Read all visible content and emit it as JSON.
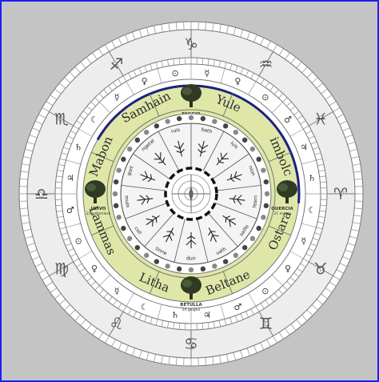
{
  "wheel": {
    "sabbats": [
      {
        "key": "samhain",
        "label": "Samhain"
      },
      {
        "key": "yule",
        "label": "Yule"
      },
      {
        "key": "imbolc",
        "label": "imbolc"
      },
      {
        "key": "ostara",
        "label": "Ostara"
      },
      {
        "key": "beltane",
        "label": "Beltane"
      },
      {
        "key": "litha",
        "label": "Litha"
      },
      {
        "key": "lammas",
        "label": "Lammas"
      },
      {
        "key": "mabon",
        "label": "Mabon"
      }
    ],
    "trees": [
      {
        "key": "fagus",
        "name": "FAGGIO",
        "date": "22 dicembre"
      },
      {
        "key": "quercia",
        "name": "QUERCIA",
        "date": "21 marzo"
      },
      {
        "key": "betula",
        "name": "BETULLA",
        "date": "24 giugno"
      },
      {
        "key": "ulivo",
        "name": "ULIVO",
        "date": "23 settembre"
      }
    ],
    "month_trees": [
      "beth",
      "luis",
      "nion",
      "fearn",
      "saille",
      "uath",
      "duir",
      "tinne",
      "coll",
      "muin",
      "gort",
      "ngetal",
      "ruis"
    ],
    "zodiac_signs": [
      "♑",
      "♒",
      "♓",
      "♈",
      "♉",
      "♊",
      "♋",
      "♌",
      "♍",
      "♎",
      "♏",
      "♐"
    ],
    "planet_symbols": [
      "☿",
      "♀",
      "⊙",
      "♂",
      "♃",
      "♄",
      "☾",
      "☿",
      "♀",
      "⊙",
      "♂",
      "♃",
      "♄",
      "☾",
      "☿",
      "♀",
      "⊙",
      "♂",
      "♃",
      "♄",
      "☾",
      "☿",
      "♀",
      "⊙"
    ],
    "colors": {
      "background": "#c4c4c4",
      "border": "#1d1ff0",
      "sabbat_ring": "#dfe7a8",
      "arc_accent": "#1c2180",
      "ink": "#333333"
    }
  }
}
